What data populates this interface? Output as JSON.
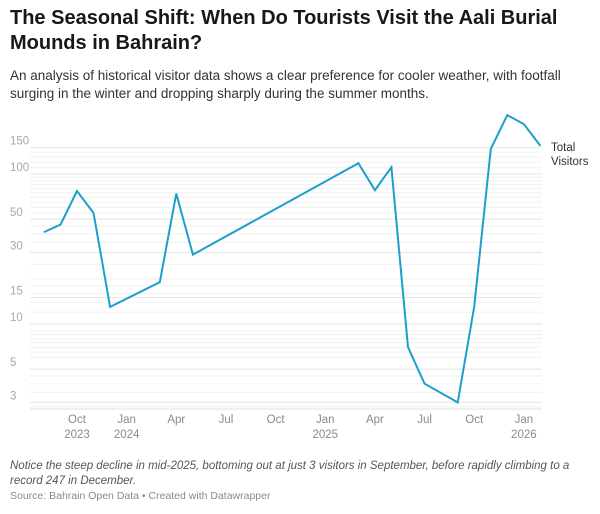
{
  "header": {
    "title": "The Seasonal Shift: When Do Tourists Visit the Aali Burial Mounds in Bahrain?",
    "subtitle": "An analysis of historical visitor data shows a clear preference for cooler weather, with footfall surging in the winter and dropping sharply during the summer months."
  },
  "footer": {
    "note": "Notice the steep decline in mid-2025, bottoming out at just 3 visitors in September, before rapidly climbing to a record 247 in December.",
    "source": "Source: Bahrain Open Data • Created with Datawrapper"
  },
  "colors": {
    "line": "#1d9fcc",
    "grid": "#e6e6e6"
  },
  "chart_data": {
    "type": "line",
    "title": "The Seasonal Shift: When Do Tourists Visit the Aali Burial Mounds in Bahrain?",
    "xlabel": "",
    "ylabel": "",
    "yscale": "log",
    "ylim": [
      2.6,
      260
    ],
    "grid": true,
    "legend_position": "inline-right",
    "y_ticks": [
      3,
      5,
      10,
      15,
      30,
      50,
      100,
      150
    ],
    "x_ticks": [
      {
        "label": "Oct",
        "sub": "2023",
        "month": "2023-10"
      },
      {
        "label": "Jan",
        "sub": "2024",
        "month": "2024-01"
      },
      {
        "label": "Apr",
        "sub": "",
        "month": "2024-04"
      },
      {
        "label": "Jul",
        "sub": "",
        "month": "2024-07"
      },
      {
        "label": "Oct",
        "sub": "",
        "month": "2024-10"
      },
      {
        "label": "Jan",
        "sub": "2025",
        "month": "2025-01"
      },
      {
        "label": "Apr",
        "sub": "",
        "month": "2025-04"
      },
      {
        "label": "Jul",
        "sub": "",
        "month": "2025-07"
      },
      {
        "label": "Oct",
        "sub": "",
        "month": "2025-10"
      },
      {
        "label": "Jan",
        "sub": "2026",
        "month": "2026-01"
      }
    ],
    "x": [
      "2023-08",
      "2023-09",
      "2023-10",
      "2023-11",
      "2023-12",
      "2024-03",
      "2024-04",
      "2024-05",
      "2025-03",
      "2025-04",
      "2025-05",
      "2025-06",
      "2025-07",
      "2025-09",
      "2025-10",
      "2025-11",
      "2025-12",
      "2026-01",
      "2026-02"
    ],
    "series": [
      {
        "name": "Total Visitors",
        "values": [
          41,
          46,
          77,
          55,
          13,
          19,
          74,
          29,
          118,
          78,
          111,
          7,
          4,
          3,
          13,
          147,
          247,
          215,
          154
        ]
      }
    ]
  }
}
